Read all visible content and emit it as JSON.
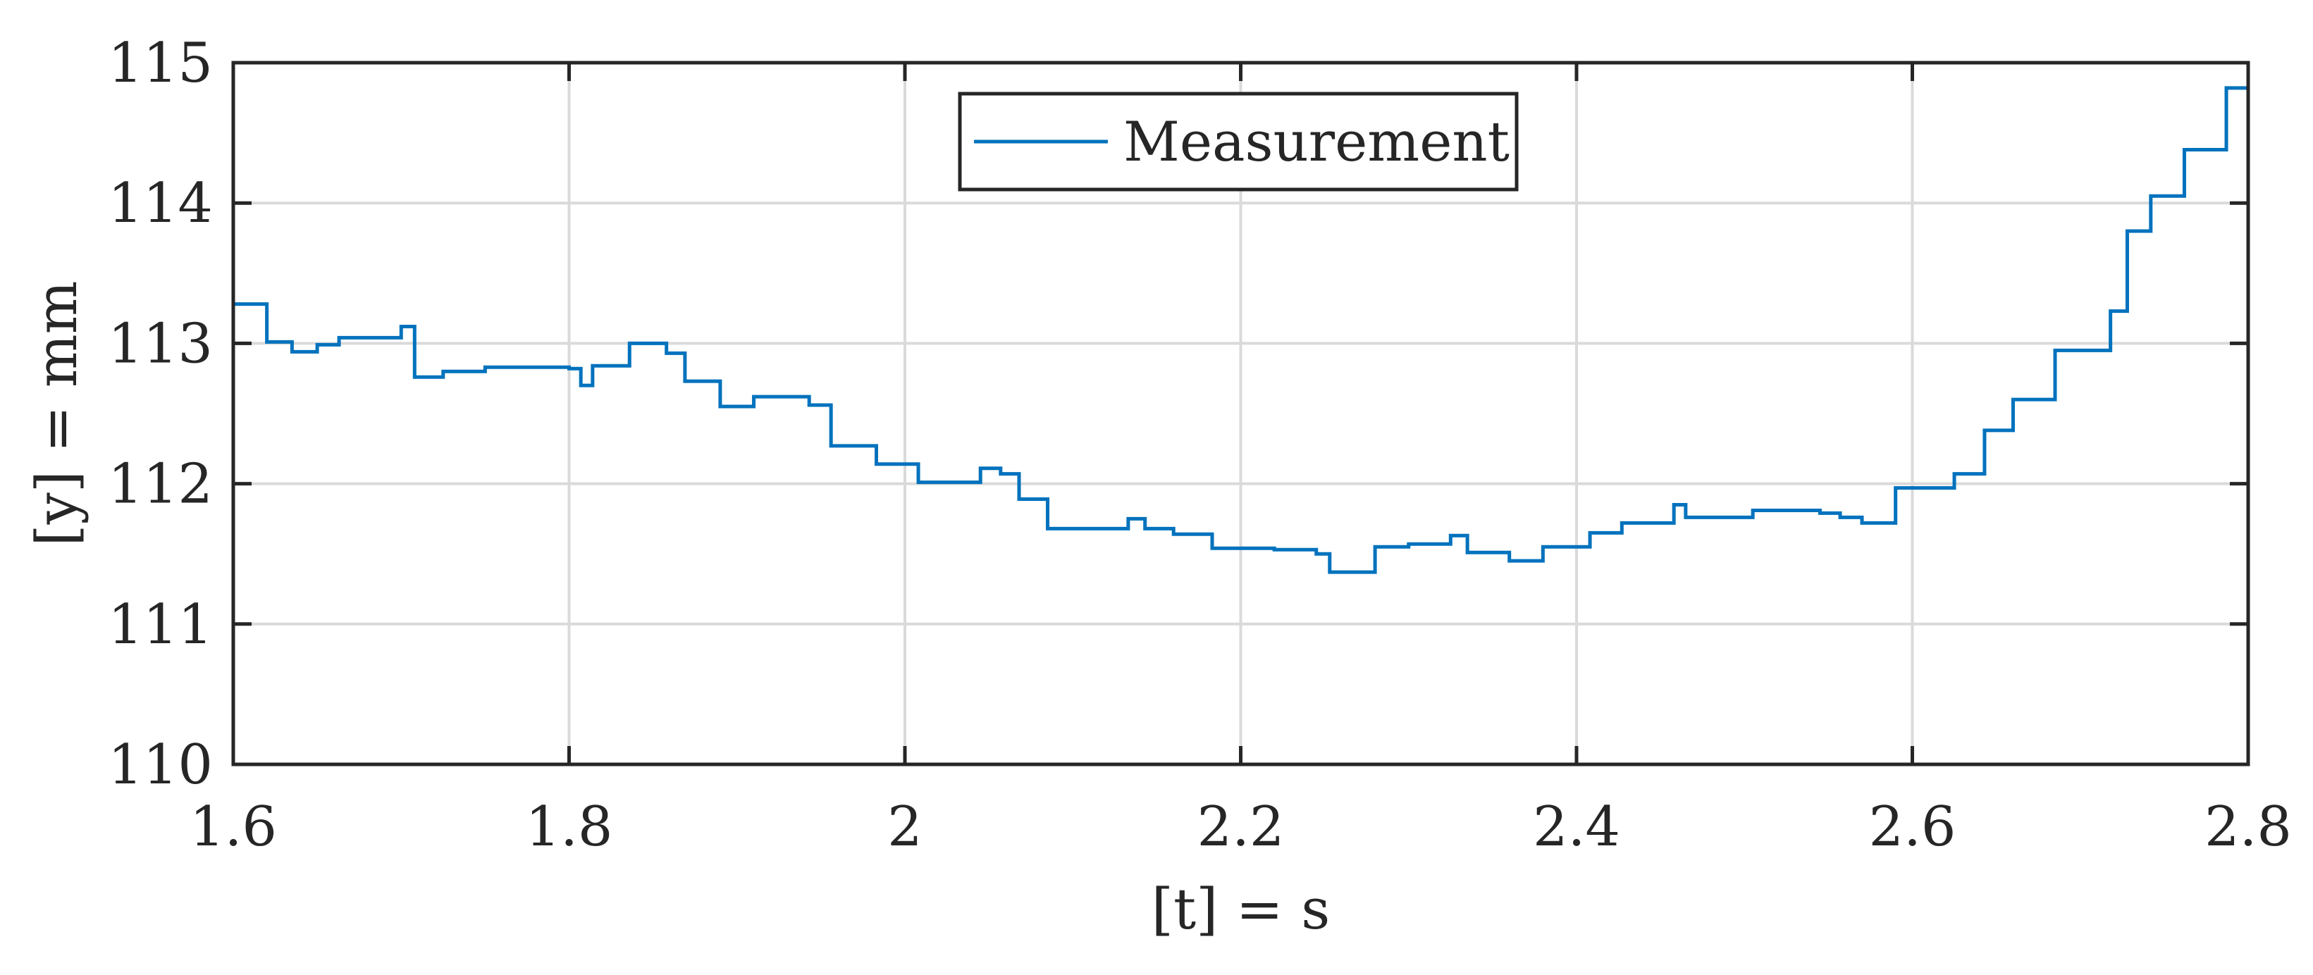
{
  "chart_data": {
    "type": "line",
    "title": "",
    "xlabel": "[t] = s",
    "ylabel": "[y] = mm",
    "xlim": [
      1.6,
      2.8
    ],
    "ylim": [
      110,
      115
    ],
    "x_ticks": [
      1.6,
      1.8,
      2.0,
      2.2,
      2.4,
      2.6,
      2.8
    ],
    "x_tick_labels": [
      "1.6",
      "1.8",
      "2",
      "2.2",
      "2.4",
      "2.6",
      "2.8"
    ],
    "y_ticks": [
      110,
      111,
      112,
      113,
      114,
      115
    ],
    "y_tick_labels": [
      "110",
      "111",
      "112",
      "113",
      "114",
      "115"
    ],
    "grid": true,
    "legend_position": "top-center",
    "step_style": "post",
    "series": [
      {
        "name": "Measurement",
        "color": "#0072BD",
        "points": [
          [
            1.6,
            113.28
          ],
          [
            1.62,
            113.01
          ],
          [
            1.635,
            112.94
          ],
          [
            1.65,
            112.99
          ],
          [
            1.663,
            113.04
          ],
          [
            1.7,
            113.12
          ],
          [
            1.708,
            112.76
          ],
          [
            1.725,
            112.8
          ],
          [
            1.75,
            112.83
          ],
          [
            1.8,
            112.82
          ],
          [
            1.807,
            112.7
          ],
          [
            1.814,
            112.84
          ],
          [
            1.836,
            113.0
          ],
          [
            1.858,
            112.93
          ],
          [
            1.869,
            112.73
          ],
          [
            1.89,
            112.55
          ],
          [
            1.91,
            112.62
          ],
          [
            1.943,
            112.56
          ],
          [
            1.956,
            112.27
          ],
          [
            1.983,
            112.14
          ],
          [
            2.008,
            112.01
          ],
          [
            2.045,
            112.11
          ],
          [
            2.057,
            112.07
          ],
          [
            2.068,
            111.89
          ],
          [
            2.085,
            111.68
          ],
          [
            2.133,
            111.75
          ],
          [
            2.143,
            111.68
          ],
          [
            2.16,
            111.64
          ],
          [
            2.183,
            111.54
          ],
          [
            2.22,
            111.53
          ],
          [
            2.245,
            111.5
          ],
          [
            2.253,
            111.37
          ],
          [
            2.28,
            111.55
          ],
          [
            2.3,
            111.57
          ],
          [
            2.325,
            111.63
          ],
          [
            2.335,
            111.51
          ],
          [
            2.36,
            111.45
          ],
          [
            2.38,
            111.55
          ],
          [
            2.408,
            111.65
          ],
          [
            2.427,
            111.72
          ],
          [
            2.458,
            111.85
          ],
          [
            2.465,
            111.76
          ],
          [
            2.505,
            111.81
          ],
          [
            2.545,
            111.79
          ],
          [
            2.557,
            111.76
          ],
          [
            2.57,
            111.72
          ],
          [
            2.59,
            111.97
          ],
          [
            2.625,
            112.07
          ],
          [
            2.643,
            112.38
          ],
          [
            2.66,
            112.6
          ],
          [
            2.685,
            112.95
          ],
          [
            2.718,
            113.23
          ],
          [
            2.728,
            113.8
          ],
          [
            2.742,
            114.05
          ],
          [
            2.762,
            114.38
          ],
          [
            2.787,
            114.82
          ],
          [
            2.8,
            114.82
          ]
        ]
      }
    ]
  }
}
